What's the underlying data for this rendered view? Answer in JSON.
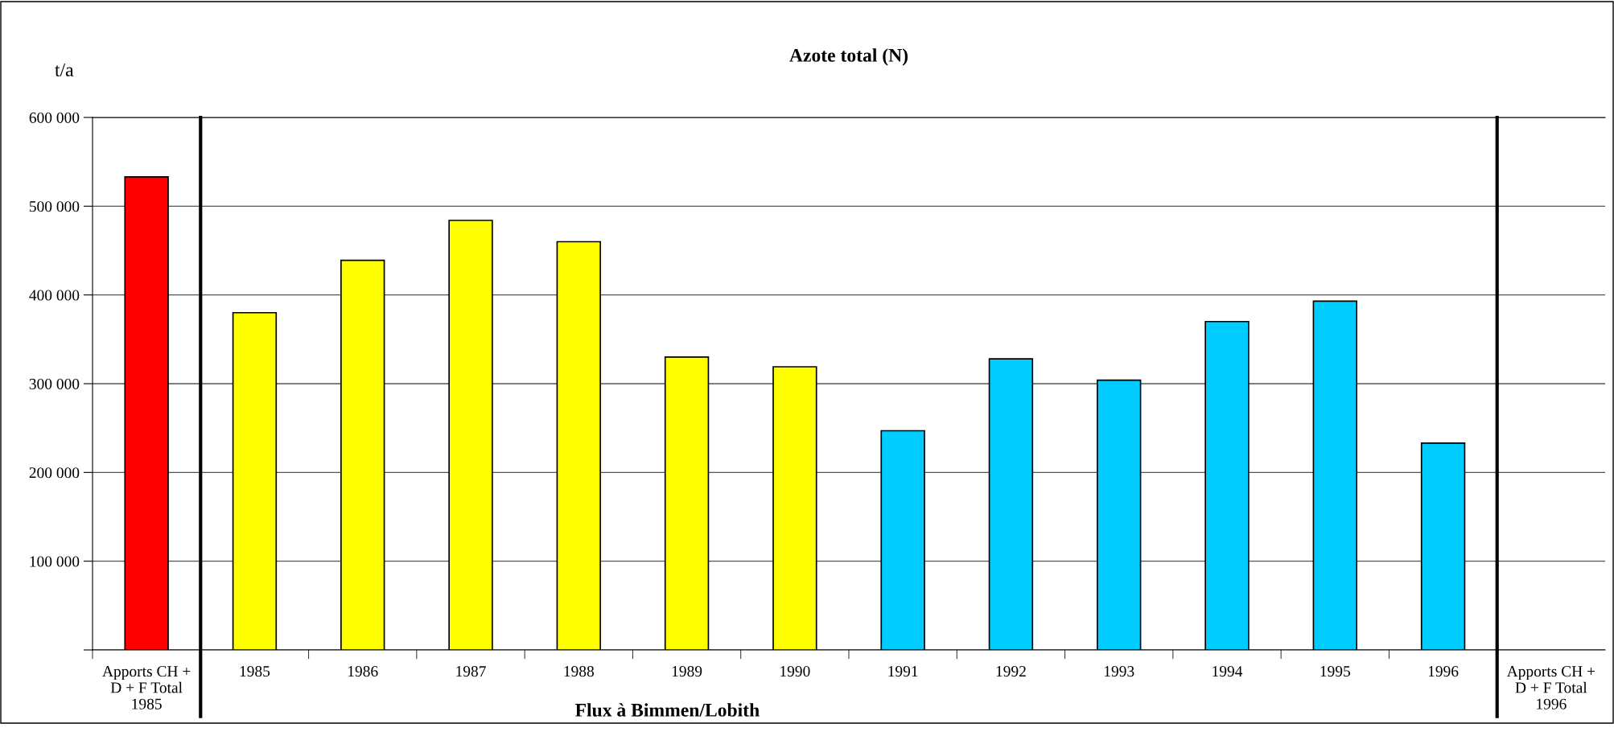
{
  "chart_data": {
    "type": "bar",
    "title": "Azote total (N)",
    "ylabel": "t/a",
    "xlabel": "Flux à Bimmen/Lobith",
    "categories": [
      "Apports CH +\nD + F Total\n1985",
      "1985",
      "1986",
      "1987",
      "1988",
      "1989",
      "1990",
      "1991",
      "1992",
      "1993",
      "1994",
      "1995",
      "1996",
      "Apports CH +\nD + F Total\n1996"
    ],
    "values": [
      533000,
      380000,
      439000,
      484000,
      460000,
      330000,
      319000,
      247000,
      328000,
      304000,
      370000,
      393000,
      233000,
      null
    ],
    "colors": [
      "#ff0000",
      "#ffff00",
      "#ffff00",
      "#ffff00",
      "#ffff00",
      "#ffff00",
      "#ffff00",
      "#00ccff",
      "#00ccff",
      "#00ccff",
      "#00ccff",
      "#00ccff",
      "#00ccff",
      "#00ccff"
    ],
    "ylim": [
      0,
      600000
    ],
    "yticks": [
      {
        "value": 0,
        "label": null
      },
      {
        "value": 100000,
        "label": "100 000"
      },
      {
        "value": 200000,
        "label": "200 000"
      },
      {
        "value": 300000,
        "label": "300 000"
      },
      {
        "value": 400000,
        "label": "400 000"
      },
      {
        "value": 500000,
        "label": "500 000"
      },
      {
        "value": 600000,
        "label": "600 000"
      }
    ],
    "grid": "y"
  }
}
